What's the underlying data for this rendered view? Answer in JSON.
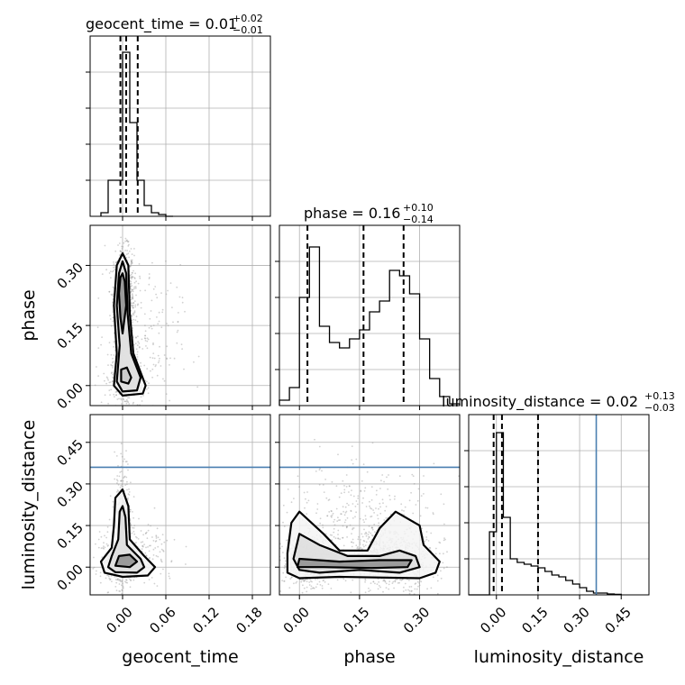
{
  "chart_data": {
    "type": "corner",
    "parameters": [
      "geocent_time",
      "phase",
      "luminosity_distance"
    ],
    "titles": [
      {
        "param": "geocent_time",
        "text": "geocent_time = 0.01",
        "sup": "+0.02",
        "sub": "−0.01"
      },
      {
        "param": "phase",
        "text": "phase = 0.16",
        "sup": "+0.10",
        "sub": "−0.14"
      },
      {
        "param": "luminosity_distance",
        "text": "luminosity_distance = 0.02",
        "sup": "+0.13",
        "sub": "−0.03"
      }
    ],
    "axis_labels": {
      "geocent_time": "geocent_time",
      "phase": "phase",
      "luminosity_distance": "luminosity_distance"
    },
    "ranges": {
      "geocent_time": [
        -0.045,
        0.205
      ],
      "phase": [
        -0.05,
        0.4
      ],
      "luminosity_distance": [
        -0.1,
        0.55
      ]
    },
    "ticks": {
      "geocent_time": [
        "0.00",
        "0.06",
        "0.12",
        "0.18"
      ],
      "phase": [
        "0.00",
        "0.15",
        "0.30"
      ],
      "luminosity_distance": [
        "0.00",
        "0.15",
        "0.30",
        "0.45"
      ]
    },
    "tick_values": {
      "geocent_time": [
        0.0,
        0.06,
        0.12,
        0.18
      ],
      "phase": [
        0.0,
        0.15,
        0.3
      ],
      "luminosity_distance": [
        0.0,
        0.15,
        0.3,
        0.45
      ]
    },
    "quantiles": {
      "geocent_time": [
        -0.003,
        0.005,
        0.021
      ],
      "phase": [
        0.02,
        0.16,
        0.26
      ],
      "luminosity_distance": [
        -0.01,
        0.02,
        0.15
      ]
    },
    "truth": {
      "luminosity_distance": 0.36
    },
    "histograms": {
      "geocent_time": {
        "edges": [
          -0.03,
          -0.02,
          -0.01,
          0.0,
          0.01,
          0.02,
          0.03,
          0.04,
          0.05,
          0.06,
          0.07
        ],
        "counts": [
          0.02,
          0.2,
          0.2,
          0.91,
          0.52,
          0.2,
          0.06,
          0.02,
          0.01,
          0.0
        ]
      },
      "phase": {
        "edges": [
          -0.05,
          -0.025,
          0.0,
          0.025,
          0.05,
          0.075,
          0.1,
          0.125,
          0.15,
          0.175,
          0.2,
          0.225,
          0.25,
          0.275,
          0.3,
          0.325,
          0.35,
          0.375,
          0.4
        ],
        "counts": [
          0.03,
          0.1,
          0.6,
          0.88,
          0.44,
          0.35,
          0.32,
          0.37,
          0.42,
          0.52,
          0.58,
          0.75,
          0.72,
          0.62,
          0.37,
          0.15,
          0.05,
          0.01
        ]
      },
      "luminosity_distance": {
        "edges": [
          -0.1,
          -0.075,
          -0.05,
          -0.025,
          0.0,
          0.025,
          0.05,
          0.075,
          0.1,
          0.125,
          0.15,
          0.175,
          0.2,
          0.225,
          0.25,
          0.275,
          0.3,
          0.325,
          0.35,
          0.375,
          0.4,
          0.425,
          0.45
        ],
        "counts": [
          0.0,
          0.0,
          0.0,
          0.35,
          0.9,
          0.43,
          0.2,
          0.18,
          0.17,
          0.16,
          0.15,
          0.13,
          0.11,
          0.1,
          0.08,
          0.06,
          0.04,
          0.02,
          0.01,
          0.01,
          0.005,
          0.003
        ]
      }
    },
    "scatter_clusters": {
      "geocent_time|phase": [
        {
          "x": 0.002,
          "y": 0.22,
          "sx": 0.007,
          "sy": 0.06,
          "n": 900
        },
        {
          "x": 0.004,
          "y": 0.02,
          "sx": 0.01,
          "sy": 0.025,
          "n": 450
        },
        {
          "x": 0.02,
          "y": 0.1,
          "sx": 0.03,
          "sy": 0.1,
          "n": 250
        }
      ],
      "geocent_time|luminosity_distance": [
        {
          "x": 0.003,
          "y": 0.02,
          "sx": 0.012,
          "sy": 0.03,
          "n": 800
        },
        {
          "x": 0.001,
          "y": 0.15,
          "sx": 0.006,
          "sy": 0.12,
          "n": 350
        },
        {
          "x": 0.02,
          "y": 0.05,
          "sx": 0.03,
          "sy": 0.06,
          "n": 200
        }
      ],
      "phase|luminosity_distance": [
        {
          "x": 0.02,
          "y": 0.02,
          "sx": 0.03,
          "sy": 0.04,
          "n": 600
        },
        {
          "x": 0.24,
          "y": 0.03,
          "sx": 0.05,
          "sy": 0.05,
          "n": 600
        },
        {
          "x": 0.15,
          "y": 0.12,
          "sx": 0.1,
          "sy": 0.12,
          "n": 500
        }
      ]
    },
    "contours": {
      "geocent_time|phase": [
        [
          [
            -0.008,
            0.3
          ],
          [
            0.0,
            0.33
          ],
          [
            0.008,
            0.3
          ],
          [
            0.01,
            0.18
          ],
          [
            0.015,
            0.08
          ],
          [
            0.032,
            0.0
          ],
          [
            0.028,
            -0.02
          ],
          [
            0.0,
            -0.025
          ],
          [
            -0.012,
            0.0
          ],
          [
            -0.008,
            0.08
          ],
          [
            -0.012,
            0.2
          ]
        ],
        [
          [
            -0.005,
            0.28
          ],
          [
            0.0,
            0.31
          ],
          [
            0.005,
            0.28
          ],
          [
            0.007,
            0.18
          ],
          [
            0.012,
            0.08
          ],
          [
            0.025,
            0.02
          ],
          [
            0.02,
            -0.012
          ],
          [
            0.0,
            -0.015
          ],
          [
            -0.008,
            0.01
          ],
          [
            -0.004,
            0.1
          ],
          [
            -0.008,
            0.2
          ]
        ],
        [
          [
            -0.003,
            0.27
          ],
          [
            0.0,
            0.28
          ],
          [
            0.003,
            0.26
          ],
          [
            0.005,
            0.2
          ],
          [
            0.0,
            0.13
          ],
          [
            -0.003,
            0.17
          ],
          [
            -0.005,
            0.23
          ]
        ],
        [
          [
            -0.002,
            0.04
          ],
          [
            0.006,
            0.045
          ],
          [
            0.012,
            0.02
          ],
          [
            0.008,
            0.005
          ],
          [
            -0.002,
            0.01
          ]
        ]
      ],
      "geocent_time|luminosity_distance": [
        [
          [
            -0.01,
            0.25
          ],
          [
            0.0,
            0.28
          ],
          [
            0.008,
            0.22
          ],
          [
            0.01,
            0.1
          ],
          [
            0.03,
            0.04
          ],
          [
            0.045,
            0.0
          ],
          [
            0.035,
            -0.03
          ],
          [
            0.0,
            -0.035
          ],
          [
            -0.025,
            -0.02
          ],
          [
            -0.03,
            0.02
          ],
          [
            -0.015,
            0.07
          ],
          [
            -0.012,
            0.15
          ]
        ],
        [
          [
            -0.004,
            0.2
          ],
          [
            0.0,
            0.22
          ],
          [
            0.004,
            0.18
          ],
          [
            0.006,
            0.08
          ],
          [
            0.025,
            0.03
          ],
          [
            0.03,
            0.0
          ],
          [
            0.02,
            -0.02
          ],
          [
            -0.01,
            -0.018
          ],
          [
            -0.02,
            0.0
          ],
          [
            -0.015,
            0.04
          ],
          [
            -0.006,
            0.1
          ]
        ],
        [
          [
            -0.005,
            0.04
          ],
          [
            0.01,
            0.045
          ],
          [
            0.02,
            0.02
          ],
          [
            0.01,
            0.0
          ],
          [
            -0.01,
            0.005
          ]
        ]
      ],
      "phase|luminosity_distance": [
        [
          [
            -0.02,
            0.16
          ],
          [
            0.0,
            0.2
          ],
          [
            0.06,
            0.12
          ],
          [
            0.1,
            0.06
          ],
          [
            0.17,
            0.06
          ],
          [
            0.2,
            0.14
          ],
          [
            0.24,
            0.2
          ],
          [
            0.3,
            0.15
          ],
          [
            0.31,
            0.08
          ],
          [
            0.35,
            0.02
          ],
          [
            0.34,
            -0.02
          ],
          [
            0.3,
            -0.04
          ],
          [
            0.1,
            -0.035
          ],
          [
            0.0,
            -0.04
          ],
          [
            -0.03,
            -0.02
          ],
          [
            -0.03,
            0.05
          ]
        ],
        [
          [
            0.0,
            0.12
          ],
          [
            0.05,
            0.08
          ],
          [
            0.12,
            0.04
          ],
          [
            0.2,
            0.04
          ],
          [
            0.25,
            0.06
          ],
          [
            0.29,
            0.04
          ],
          [
            0.3,
            0.0
          ],
          [
            0.25,
            -0.02
          ],
          [
            0.15,
            -0.01
          ],
          [
            0.05,
            -0.02
          ],
          [
            0.0,
            -0.01
          ],
          [
            -0.015,
            0.03
          ]
        ],
        [
          [
            0.0,
            0.03
          ],
          [
            0.1,
            0.02
          ],
          [
            0.2,
            0.025
          ],
          [
            0.28,
            0.025
          ],
          [
            0.27,
            0.0
          ],
          [
            0.18,
            -0.003
          ],
          [
            0.06,
            0.0
          ],
          [
            -0.005,
            0.0
          ]
        ]
      ]
    }
  }
}
